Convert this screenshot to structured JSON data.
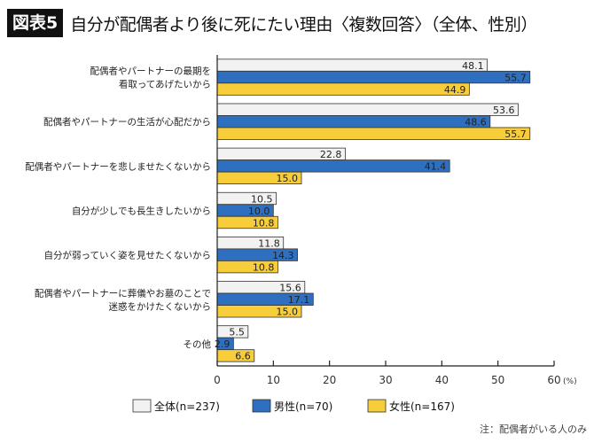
{
  "header": {
    "figure_label": "図表5",
    "title": "自分が配偶者より後に死にたい理由〈複数回答〉（全体、性別）"
  },
  "chart_data": {
    "type": "bar",
    "orientation": "horizontal",
    "categories": [
      [
        "配偶者やパートナーの最期を",
        "看取ってあげたいから"
      ],
      [
        "配偶者やパートナーの生活が心配だから"
      ],
      [
        "配偶者やパートナーを悲しませたくないから"
      ],
      [
        "自分が少しでも長生きしたいから"
      ],
      [
        "自分が弱っていく姿を見せたくないから"
      ],
      [
        "配偶者やパートナーに葬儀やお墓のことで",
        "迷惑をかけたくないから"
      ],
      [
        "その他"
      ]
    ],
    "series": [
      {
        "name": "全体(n=237)",
        "color": "#f2f2f2",
        "values": [
          48.1,
          53.6,
          22.8,
          10.5,
          11.8,
          15.6,
          5.5
        ],
        "label_color": "#222"
      },
      {
        "name": "男性(n=70)",
        "color": "#2e6fc0",
        "values": [
          55.7,
          48.6,
          41.4,
          10.0,
          14.3,
          17.1,
          2.9
        ],
        "label_color": "#ffffff"
      },
      {
        "name": "女性(n=167)",
        "color": "#f7cd3a",
        "values": [
          44.9,
          55.7,
          15.0,
          10.8,
          10.8,
          15.0,
          6.6
        ],
        "label_color": "#222"
      }
    ],
    "xlim": [
      0,
      60
    ],
    "xticks": [
      0,
      10,
      20,
      30,
      40,
      50,
      60
    ],
    "xunit": "(%)",
    "grid": false,
    "legend": "bottom"
  },
  "note": "注：配偶者がいる人のみ"
}
